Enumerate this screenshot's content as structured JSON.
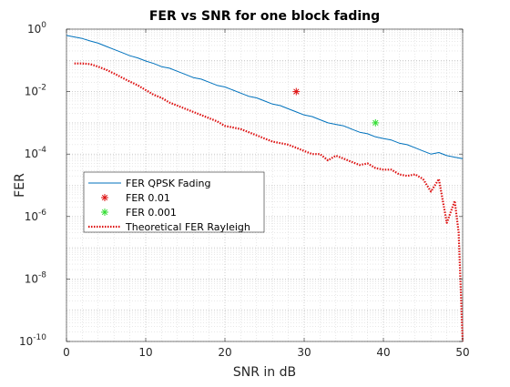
{
  "chart_data": {
    "type": "line",
    "title": "FER vs SNR for one block fading",
    "xlabel": "SNR in dB",
    "ylabel": "FER",
    "xlim": [
      0,
      50
    ],
    "ylim_log10": [
      -10,
      0
    ],
    "yscale": "log",
    "grid": "major and minor, dotted",
    "x_ticks": [
      0,
      10,
      20,
      30,
      40,
      50
    ],
    "x_tick_labels": [
      "0",
      "10",
      "20",
      "30",
      "40",
      "50"
    ],
    "y_ticks": [
      {
        "base": "10",
        "exp": "0"
      },
      {
        "base": "10",
        "exp": "-2"
      },
      {
        "base": "10",
        "exp": "-4"
      },
      {
        "base": "10",
        "exp": "-6"
      },
      {
        "base": "10",
        "exp": "-8"
      },
      {
        "base": "10",
        "exp": "-10"
      }
    ],
    "legend_position": "middle-left",
    "series": [
      {
        "name": "FER QPSK Fading",
        "color": "#0072BD",
        "style": "solid",
        "x": [
          0,
          1,
          2,
          3,
          4,
          5,
          6,
          7,
          8,
          9,
          10,
          11,
          12,
          13,
          14,
          15,
          16,
          17,
          18,
          19,
          20,
          21,
          22,
          23,
          24,
          25,
          26,
          27,
          28,
          29,
          30,
          31,
          32,
          33,
          34,
          35,
          36,
          37,
          38,
          39,
          40,
          41,
          42,
          43,
          44,
          45,
          46,
          47,
          48,
          49,
          50
        ],
        "log10_y": [
          -0.2,
          -0.25,
          -0.3,
          -0.38,
          -0.45,
          -0.55,
          -0.65,
          -0.75,
          -0.85,
          -0.92,
          -1.02,
          -1.1,
          -1.2,
          -1.25,
          -1.35,
          -1.45,
          -1.55,
          -1.6,
          -1.7,
          -1.8,
          -1.85,
          -1.95,
          -2.05,
          -2.15,
          -2.2,
          -2.3,
          -2.4,
          -2.45,
          -2.55,
          -2.65,
          -2.75,
          -2.8,
          -2.9,
          -3.0,
          -3.05,
          -3.1,
          -3.2,
          -3.3,
          -3.35,
          -3.45,
          -3.5,
          -3.55,
          -3.65,
          -3.7,
          -3.8,
          -3.9,
          -4.0,
          -3.95,
          -4.05,
          -4.1,
          -4.15
        ]
      },
      {
        "name": "FER 0.01",
        "color": "#DD1111",
        "style": "marker-star",
        "x": [
          29
        ],
        "log10_y": [
          -2
        ]
      },
      {
        "name": "FER 0.001",
        "color": "#33DD33",
        "style": "marker-star",
        "x": [
          39
        ],
        "log10_y": [
          -3
        ]
      },
      {
        "name": "Theoretical FER Rayleigh",
        "color": "#DD1111",
        "style": "dotted",
        "x": [
          1,
          2,
          3,
          4,
          5,
          6,
          7,
          8,
          9,
          10,
          11,
          12,
          13,
          14,
          15,
          16,
          17,
          18,
          19,
          20,
          21,
          22,
          23,
          24,
          25,
          26,
          27,
          28,
          29,
          30,
          31,
          32,
          33,
          34,
          35,
          36,
          37,
          38,
          39,
          40,
          41,
          42,
          43,
          44,
          45,
          46,
          47,
          48,
          49,
          49.5,
          50
        ],
        "log10_y": [
          -1.1,
          -1.1,
          -1.12,
          -1.2,
          -1.3,
          -1.42,
          -1.55,
          -1.68,
          -1.8,
          -1.95,
          -2.1,
          -2.2,
          -2.35,
          -2.45,
          -2.55,
          -2.65,
          -2.75,
          -2.85,
          -2.95,
          -3.1,
          -3.15,
          -3.2,
          -3.3,
          -3.4,
          -3.5,
          -3.6,
          -3.65,
          -3.7,
          -3.8,
          -3.9,
          -4.0,
          -4.0,
          -4.2,
          -4.05,
          -4.15,
          -4.25,
          -4.35,
          -4.3,
          -4.45,
          -4.5,
          -4.5,
          -4.65,
          -4.7,
          -4.65,
          -4.8,
          -5.2,
          -4.8,
          -6.2,
          -5.5,
          -6.5,
          -10
        ]
      }
    ]
  }
}
